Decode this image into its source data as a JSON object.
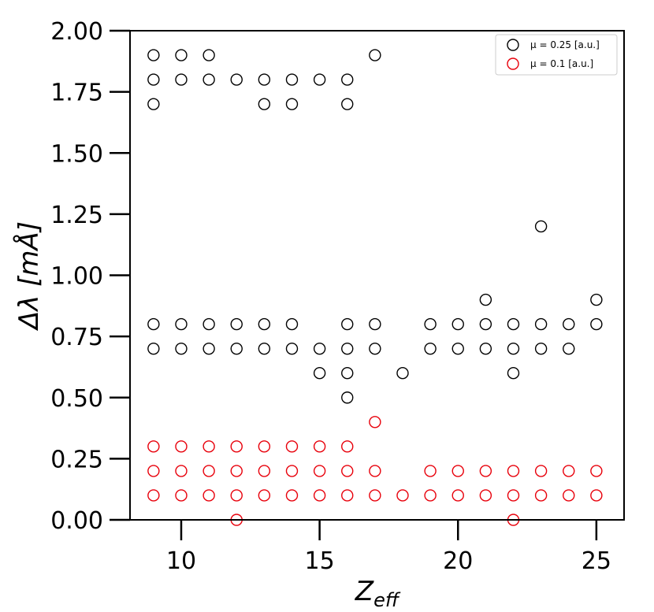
{
  "chart_data": {
    "type": "scatter",
    "title": "",
    "xlabel": "Z_eff",
    "xlabel_main": "Z",
    "xlabel_sub": "eff",
    "ylabel": "Δλ [mÅ]",
    "xlim": [
      8.15,
      26.0
    ],
    "ylim": [
      0.0,
      2.0
    ],
    "xticks": [
      10,
      15,
      20,
      25
    ],
    "xtick_labels": [
      "10",
      "15",
      "20",
      "25"
    ],
    "yticks": [
      0.0,
      0.25,
      0.5,
      0.75,
      1.0,
      1.25,
      1.5,
      1.75,
      2.0
    ],
    "ytick_labels": [
      "0.00",
      "0.25",
      "0.50",
      "0.75",
      "1.00",
      "1.25",
      "1.50",
      "1.75",
      "2.00"
    ],
    "grid": false,
    "legend_position": "top-right",
    "marker": "open-circle",
    "series": [
      {
        "name": "μ = 0.25 [a.u.]",
        "color": "#000000",
        "points": [
          [
            9,
            1.9
          ],
          [
            9,
            1.8
          ],
          [
            9,
            1.7
          ],
          [
            9,
            0.8
          ],
          [
            9,
            0.7
          ],
          [
            10,
            1.9
          ],
          [
            10,
            1.8
          ],
          [
            10,
            0.8
          ],
          [
            10,
            0.7
          ],
          [
            11,
            1.9
          ],
          [
            11,
            1.8
          ],
          [
            11,
            0.8
          ],
          [
            11,
            0.7
          ],
          [
            12,
            1.8
          ],
          [
            12,
            0.8
          ],
          [
            12,
            0.7
          ],
          [
            13,
            1.8
          ],
          [
            13,
            1.7
          ],
          [
            13,
            0.8
          ],
          [
            13,
            0.7
          ],
          [
            14,
            1.8
          ],
          [
            14,
            1.7
          ],
          [
            14,
            0.8
          ],
          [
            14,
            0.7
          ],
          [
            15,
            1.8
          ],
          [
            15,
            0.7
          ],
          [
            15,
            0.6
          ],
          [
            16,
            1.8
          ],
          [
            16,
            1.7
          ],
          [
            16,
            0.8
          ],
          [
            16,
            0.7
          ],
          [
            16,
            0.6
          ],
          [
            16,
            0.5
          ],
          [
            17,
            1.9
          ],
          [
            17,
            0.8
          ],
          [
            17,
            0.7
          ],
          [
            18,
            0.6
          ],
          [
            19,
            0.8
          ],
          [
            19,
            0.7
          ],
          [
            20,
            0.8
          ],
          [
            20,
            0.7
          ],
          [
            21,
            0.9
          ],
          [
            21,
            0.8
          ],
          [
            21,
            0.7
          ],
          [
            22,
            0.8
          ],
          [
            22,
            0.7
          ],
          [
            22,
            0.6
          ],
          [
            23,
            1.2
          ],
          [
            23,
            0.8
          ],
          [
            23,
            0.7
          ],
          [
            24,
            0.8
          ],
          [
            24,
            0.7
          ],
          [
            25,
            0.9
          ],
          [
            25,
            0.8
          ]
        ]
      },
      {
        "name": "μ = 0.1 [a.u.]",
        "color": "#e8000b",
        "points": [
          [
            9,
            0.3
          ],
          [
            9,
            0.2
          ],
          [
            9,
            0.1
          ],
          [
            10,
            0.3
          ],
          [
            10,
            0.2
          ],
          [
            10,
            0.1
          ],
          [
            11,
            0.3
          ],
          [
            11,
            0.2
          ],
          [
            11,
            0.1
          ],
          [
            12,
            0.3
          ],
          [
            12,
            0.2
          ],
          [
            12,
            0.1
          ],
          [
            12,
            0.0
          ],
          [
            13,
            0.3
          ],
          [
            13,
            0.2
          ],
          [
            13,
            0.1
          ],
          [
            14,
            0.3
          ],
          [
            14,
            0.2
          ],
          [
            14,
            0.1
          ],
          [
            15,
            0.3
          ],
          [
            15,
            0.2
          ],
          [
            15,
            0.1
          ],
          [
            16,
            0.3
          ],
          [
            16,
            0.2
          ],
          [
            16,
            0.1
          ],
          [
            17,
            0.4
          ],
          [
            17,
            0.2
          ],
          [
            17,
            0.1
          ],
          [
            18,
            0.1
          ],
          [
            19,
            0.2
          ],
          [
            19,
            0.1
          ],
          [
            20,
            0.2
          ],
          [
            20,
            0.1
          ],
          [
            21,
            0.2
          ],
          [
            21,
            0.1
          ],
          [
            22,
            0.2
          ],
          [
            22,
            0.1
          ],
          [
            22,
            0.0
          ],
          [
            23,
            0.2
          ],
          [
            23,
            0.1
          ],
          [
            24,
            0.2
          ],
          [
            24,
            0.1
          ],
          [
            25,
            0.2
          ],
          [
            25,
            0.1
          ]
        ]
      }
    ]
  }
}
